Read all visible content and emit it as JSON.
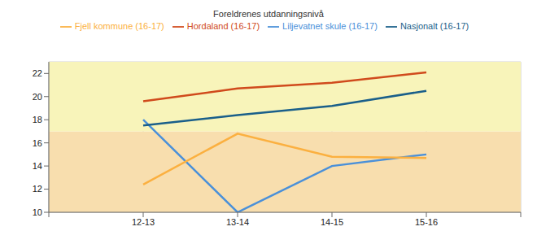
{
  "chart_data": {
    "type": "line",
    "title": "Foreldrenes utdanningsnivå",
    "categories": [
      null,
      "12-13",
      "13-14",
      "14-15",
      "15-16",
      null
    ],
    "series": [
      {
        "name": "Liljevatnet skule (16-17)",
        "color": "#4a90d9",
        "values": [
          null,
          18,
          10,
          14,
          15,
          null
        ]
      },
      {
        "name": "Fjell kommune (16-17)",
        "color": "#fbb040",
        "values": [
          null,
          12.4,
          16.8,
          14.8,
          14.7,
          null
        ]
      },
      {
        "name": "Hordaland (16-17)",
        "color": "#d04a1c",
        "values": [
          null,
          19.6,
          20.7,
          21.2,
          22.1,
          null
        ]
      },
      {
        "name": "Nasjonalt (16-17)",
        "color": "#1a5f8a",
        "values": [
          null,
          17.5,
          18.4,
          19.2,
          20.5,
          null
        ]
      }
    ],
    "ylim": [
      10,
      23
    ],
    "yticks": [
      10,
      12,
      14,
      16,
      18,
      20,
      22
    ],
    "bands": [
      {
        "from": 10,
        "to": 17,
        "color": "#f8deae"
      },
      {
        "from": 17,
        "to": 23,
        "color": "#f8f4ba"
      }
    ],
    "grid": true,
    "legend": "top"
  }
}
